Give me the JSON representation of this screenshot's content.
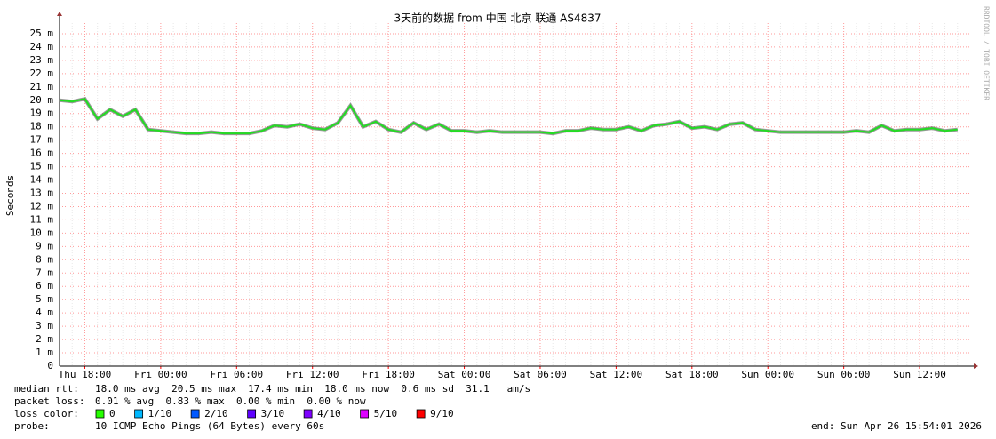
{
  "chart_data": {
    "type": "line",
    "title": "3天前的数据 from  中国 北京 联通 AS4837",
    "y_label": "Seconds",
    "side_text": "RRDTOOL / TOBI OETIKER",
    "categories": [
      null,
      null,
      "Thu 18:00",
      null,
      null,
      null,
      null,
      null,
      "Fri 00:00",
      null,
      null,
      null,
      null,
      null,
      "Fri 06:00",
      null,
      null,
      null,
      null,
      null,
      "Fri 12:00",
      null,
      null,
      null,
      null,
      null,
      "Fri 18:00",
      null,
      null,
      null,
      null,
      null,
      "Sat 00:00",
      null,
      null,
      null,
      null,
      null,
      "Sat 06:00",
      null,
      null,
      null,
      null,
      null,
      "Sat 12:00",
      null,
      null,
      null,
      null,
      null,
      "Sat 18:00",
      null,
      null,
      null,
      null,
      null,
      "Sun 00:00",
      null,
      null,
      null,
      null,
      null,
      "Sun 06:00",
      null,
      null,
      null,
      null,
      null,
      "Sun 12:00",
      null,
      null,
      null
    ],
    "series": [
      {
        "name": "median rtt:",
        "color": "#22dd22",
        "values": [
          0.02,
          0.0199,
          0.0201,
          0.0186,
          0.0193,
          0.0188,
          0.0193,
          0.0178,
          0.0177,
          0.0176,
          0.0175,
          0.0175,
          0.0176,
          0.0175,
          0.0175,
          0.0175,
          0.0177,
          0.0181,
          0.018,
          0.0182,
          0.0179,
          0.0178,
          0.0183,
          0.0196,
          0.018,
          0.0184,
          0.0178,
          0.0176,
          0.0183,
          0.0178,
          0.0182,
          0.0177,
          0.0177,
          0.0176,
          0.0177,
          0.0176,
          0.0176,
          0.0176,
          0.0176,
          0.0175,
          0.0177,
          0.0177,
          0.0179,
          0.0178,
          0.0178,
          0.018,
          0.0177,
          0.0181,
          0.0182,
          0.0184,
          0.0179,
          0.018,
          0.0178,
          0.0182,
          0.0183,
          0.0178,
          0.0177,
          0.0176,
          0.0176,
          0.0176,
          0.0176,
          0.0176,
          0.0176,
          0.0177,
          0.0176,
          0.0181,
          0.0177,
          0.0178,
          0.0178,
          0.0179,
          0.0177,
          0.0178
        ]
      }
    ],
    "ylim": [
      0,
      0.0258
    ],
    "yticks": [
      0,
      {
        "value": 0.001,
        "label": "1 m"
      },
      {
        "value": 0.002,
        "label": "2 m"
      },
      {
        "value": 0.003,
        "label": "3 m"
      },
      {
        "value": 0.004,
        "label": "4 m"
      },
      {
        "value": 0.005,
        "label": "5 m"
      },
      {
        "value": 0.006,
        "label": "6 m"
      },
      {
        "value": 0.007,
        "label": "7 m"
      },
      {
        "value": 0.008,
        "label": "8 m"
      },
      {
        "value": 0.009,
        "label": "9 m"
      },
      {
        "value": 0.01,
        "label": "10 m"
      },
      {
        "value": 0.011,
        "label": "11 m"
      },
      {
        "value": 0.012,
        "label": "12 m"
      },
      {
        "value": 0.013,
        "label": "13 m"
      },
      {
        "value": 0.014,
        "label": "14 m"
      },
      {
        "value": 0.015,
        "label": "15 m"
      },
      {
        "value": 0.016,
        "label": "16 m"
      },
      {
        "value": 0.017,
        "label": "17 m"
      },
      {
        "value": 0.018,
        "label": "18 m"
      },
      {
        "value": 0.019,
        "label": "19 m"
      },
      {
        "value": 0.02,
        "label": "20 m"
      },
      {
        "value": 0.021,
        "label": "21 m"
      },
      {
        "value": 0.022,
        "label": "22 m"
      },
      {
        "value": 0.023,
        "label": "23 m"
      },
      {
        "value": 0.024,
        "label": "24 m"
      },
      {
        "value": 0.025,
        "label": "25 m"
      }
    ],
    "grid": true,
    "stats": {
      "median_text": "18.0 ms avg  20.5 ms max  17.4 ms min  18.0 ms now  0.6 ms sd  31.1   am/s",
      "packet_loss_label": "packet loss:",
      "packet_loss_text": "0.01 % avg  0.83 % max  0.00 % min  0.00 % now",
      "loss_color_label": "loss color:",
      "loss_colors": [
        {
          "label": "0",
          "color": "#26ff00"
        },
        {
          "label": "1/10",
          "color": "#00b8ff"
        },
        {
          "label": "2/10",
          "color": "#0059ff"
        },
        {
          "label": "3/10",
          "color": "#5e00ff"
        },
        {
          "label": "4/10",
          "color": "#7e00ff"
        },
        {
          "label": "5/10",
          "color": "#dd00ff"
        },
        {
          "label": "9/10",
          "color": "#ff0000"
        }
      ],
      "probe_label": "probe:",
      "probe_text": "10 ICMP Echo Pings (64 Bytes) every 60s",
      "end_text": "end: Sun Apr 26 15:54:01 2026"
    }
  }
}
